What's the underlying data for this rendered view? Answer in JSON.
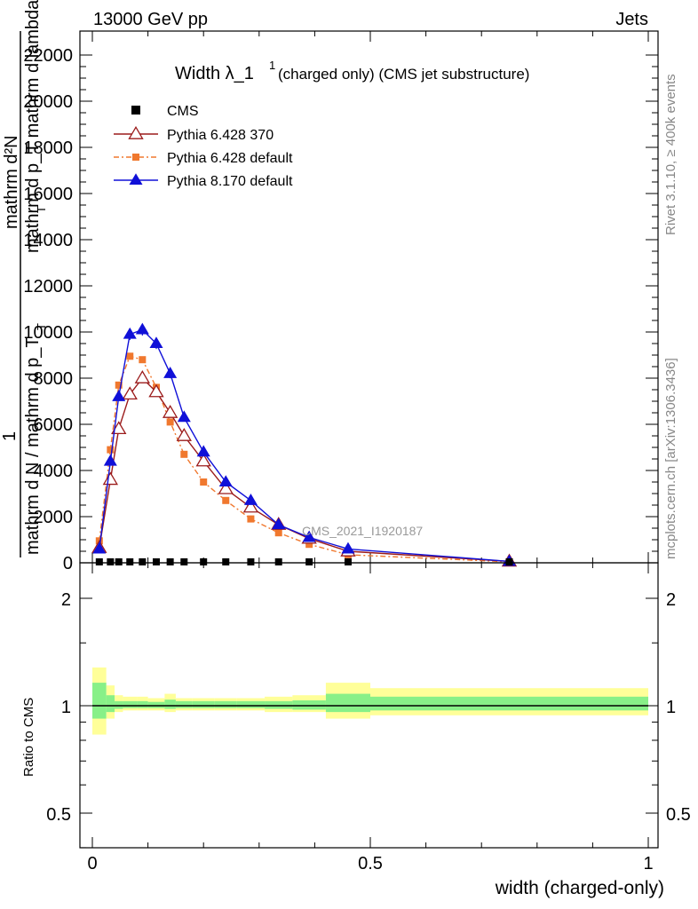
{
  "header": {
    "left": "13000 GeV pp",
    "right": "Jets"
  },
  "side_labels": {
    "rivet": "Rivet 3.1.10, ≥ 400k events",
    "mcplots": "mcplots.cern.ch [arXiv:1306.3436]"
  },
  "chart_data": [
    {
      "type": "line",
      "title_main": "Width λ_1",
      "title_sup": "1",
      "title_rest": "(charged only) (CMS jet substructure)",
      "watermark": "CMS_2021_I1920187",
      "ylabel_lines": [
        "mathrm d²N",
        "mathrm d p_T mathrm d lambda",
        "1",
        "mathrm d N / mathrm d p_T"
      ],
      "ylabel_sub": "T",
      "xlim": [
        0,
        1
      ],
      "ylim": [
        0,
        23000
      ],
      "yticks": [
        0,
        2000,
        4000,
        6000,
        8000,
        10000,
        12000,
        14000,
        16000,
        18000,
        20000,
        22000
      ],
      "ytick_labels": [
        "0",
        "2000",
        "4000",
        "6000",
        "8000",
        "10000",
        "12000",
        "14000",
        "16000",
        "18000",
        "20000",
        "22000"
      ],
      "legend_position": "top-left",
      "series": [
        {
          "name": "CMS",
          "color": "#000000",
          "marker": "square",
          "x": [
            0.0125,
            0.0325,
            0.0475,
            0.0675,
            0.09,
            0.115,
            0.14,
            0.165,
            0.2,
            0.24,
            0.285,
            0.335,
            0.39,
            0.46,
            0.75
          ],
          "y": [
            40,
            40,
            40,
            40,
            40,
            40,
            40,
            40,
            40,
            40,
            40,
            40,
            40,
            40,
            40
          ]
        },
        {
          "name": "Pythia 6.428 370",
          "color": "#9b1b1b",
          "marker": "open-triangle",
          "x": [
            0.0125,
            0.0325,
            0.0475,
            0.0675,
            0.09,
            0.115,
            0.14,
            0.165,
            0.2,
            0.24,
            0.285,
            0.335,
            0.39,
            0.46,
            0.75
          ],
          "y": [
            650,
            3600,
            5800,
            7300,
            8000,
            7400,
            6500,
            5500,
            4400,
            3200,
            2400,
            1650,
            1050,
            500,
            60
          ]
        },
        {
          "name": "Pythia 6.428 default",
          "color": "#f0782e",
          "marker": "square",
          "x": [
            0.0125,
            0.0325,
            0.0475,
            0.0675,
            0.09,
            0.115,
            0.14,
            0.165,
            0.2,
            0.24,
            0.285,
            0.335,
            0.39,
            0.46,
            0.75
          ],
          "y": [
            950,
            4900,
            7700,
            8950,
            8800,
            7600,
            6100,
            4700,
            3500,
            2700,
            1900,
            1300,
            800,
            350,
            40
          ]
        },
        {
          "name": "Pythia 8.170 default",
          "color": "#1010d8",
          "marker": "filled-triangle",
          "x": [
            0.0125,
            0.0325,
            0.0475,
            0.0675,
            0.09,
            0.115,
            0.14,
            0.165,
            0.2,
            0.24,
            0.285,
            0.335,
            0.39,
            0.46,
            0.75
          ],
          "y": [
            600,
            4400,
            7200,
            9900,
            10100,
            9500,
            8200,
            6300,
            4800,
            3500,
            2700,
            1650,
            1100,
            600,
            60
          ]
        }
      ]
    },
    {
      "type": "area",
      "ylabel": "Ratio to CMS",
      "xlabel": "width (charged-only)",
      "xlim": [
        0,
        1
      ],
      "ylim": [
        0.35,
        2.3
      ],
      "yticks": [
        0.5,
        1,
        2
      ],
      "ytick_labels": [
        "0.5",
        "1",
        "2"
      ],
      "xticks": [
        0,
        0.5,
        1
      ],
      "xtick_labels": [
        "0",
        "0.5",
        "1"
      ],
      "reference_line": 1,
      "bins": [
        {
          "x0": 0.0,
          "x1": 0.025,
          "yellow": [
            0.83,
            1.28
          ],
          "green": [
            0.92,
            1.16
          ]
        },
        {
          "x0": 0.025,
          "x1": 0.04,
          "yellow": [
            0.92,
            1.14
          ],
          "green": [
            0.96,
            1.07
          ]
        },
        {
          "x0": 0.04,
          "x1": 0.055,
          "yellow": [
            0.96,
            1.07
          ],
          "green": [
            0.98,
            1.03
          ]
        },
        {
          "x0": 0.055,
          "x1": 0.08,
          "yellow": [
            0.97,
            1.06
          ],
          "green": [
            0.985,
            1.03
          ]
        },
        {
          "x0": 0.08,
          "x1": 0.1,
          "yellow": [
            0.97,
            1.06
          ],
          "green": [
            0.985,
            1.03
          ]
        },
        {
          "x0": 0.1,
          "x1": 0.13,
          "yellow": [
            0.97,
            1.05
          ],
          "green": [
            0.985,
            1.025
          ]
        },
        {
          "x0": 0.13,
          "x1": 0.15,
          "yellow": [
            0.96,
            1.08
          ],
          "green": [
            0.98,
            1.04
          ]
        },
        {
          "x0": 0.15,
          "x1": 0.18,
          "yellow": [
            0.97,
            1.05
          ],
          "green": [
            0.985,
            1.03
          ]
        },
        {
          "x0": 0.18,
          "x1": 0.22,
          "yellow": [
            0.97,
            1.05
          ],
          "green": [
            0.985,
            1.03
          ]
        },
        {
          "x0": 0.22,
          "x1": 0.26,
          "yellow": [
            0.97,
            1.05
          ],
          "green": [
            0.985,
            1.03
          ]
        },
        {
          "x0": 0.26,
          "x1": 0.31,
          "yellow": [
            0.97,
            1.05
          ],
          "green": [
            0.985,
            1.03
          ]
        },
        {
          "x0": 0.31,
          "x1": 0.36,
          "yellow": [
            0.96,
            1.06
          ],
          "green": [
            0.98,
            1.03
          ]
        },
        {
          "x0": 0.36,
          "x1": 0.42,
          "yellow": [
            0.96,
            1.07
          ],
          "green": [
            0.975,
            1.035
          ]
        },
        {
          "x0": 0.42,
          "x1": 0.5,
          "yellow": [
            0.92,
            1.16
          ],
          "green": [
            0.96,
            1.08
          ]
        },
        {
          "x0": 0.5,
          "x1": 1.0,
          "yellow": [
            0.94,
            1.12
          ],
          "green": [
            0.97,
            1.06
          ]
        }
      ]
    }
  ]
}
